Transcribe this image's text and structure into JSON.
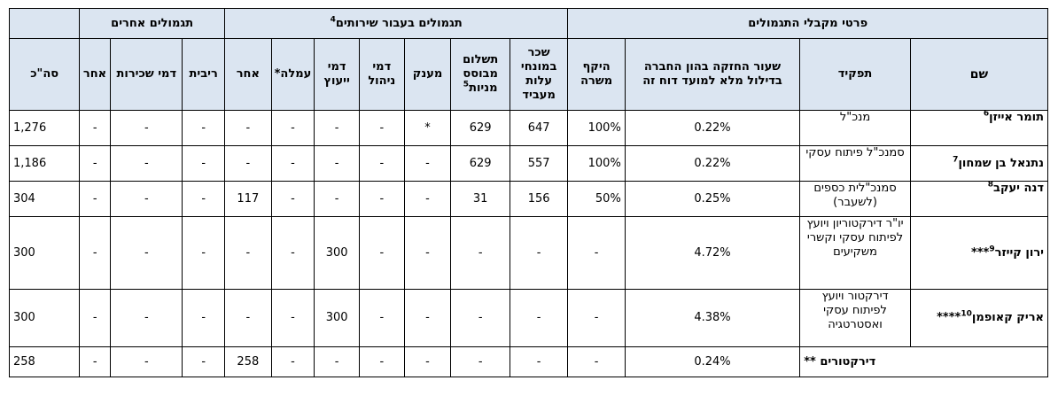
{
  "group_headers": {
    "recipients": "פרטי מקבלי התגמולים",
    "services": "תגמולים בעבור שירותים",
    "services_note": "4",
    "other": "תגמולים אחרים"
  },
  "columns": {
    "name": "שם",
    "role": "תפקיד",
    "holding": "שעור החזקה בהון החברה בדילול מלא למועד דוח זה",
    "scope": "היקף משרה",
    "salary": "שכר במונחי עלות מעביד",
    "share_payment": "תשלום מבוסס מניות",
    "share_payment_note": "5",
    "grant": "מענק",
    "management": "דמי ניהול",
    "consulting": "דמי ייעוץ",
    "commission": "עמלה*",
    "other_service": "אחר",
    "interest": "ריבית",
    "rent": "דמי שכירות",
    "other": "אחר",
    "total": "סה\"כ"
  },
  "rows": [
    {
      "name": "תומר אייזן",
      "note": "6",
      "role": "מנכ\"ל",
      "holding": "0.22%",
      "scope": "100%",
      "salary": "647",
      "share_payment": "629",
      "grant": "*",
      "management": "-",
      "consulting": "-",
      "commission": "-",
      "other_service": "-",
      "interest": "-",
      "rent": "-",
      "other": "-",
      "total": "1,276"
    },
    {
      "name": "נתנאל בן שמחון",
      "note": "7",
      "role": "סמנכ\"ל פיתוח עסקי",
      "holding": "0.22%",
      "scope": "100%",
      "salary": "557",
      "share_payment": "629",
      "grant": "-",
      "management": "-",
      "consulting": "-",
      "commission": "-",
      "other_service": "-",
      "interest": "-",
      "rent": "-",
      "other": "-",
      "total": "1,186"
    },
    {
      "name": "דנה יעקב",
      "note": "8",
      "role": "סמנכ\"לית כספים (לשעבר)",
      "holding": "0.25%",
      "scope": "50%",
      "salary": "156",
      "share_payment": "31",
      "grant": "-",
      "management": "-",
      "consulting": "-",
      "commission": "-",
      "other_service": "117",
      "interest": "-",
      "rent": "-",
      "other": "-",
      "total": "304"
    },
    {
      "name": "ירון קייזר",
      "note": "9",
      "suffix": "***",
      "role": "יו\"ר דירקטוריון ויועץ לפיתוח עסקי וקשרי משקיעים",
      "holding": "4.72%",
      "scope": "-",
      "salary": "-",
      "share_payment": "-",
      "grant": "-",
      "management": "-",
      "consulting": "300",
      "commission": "-",
      "other_service": "-",
      "interest": "-",
      "rent": "-",
      "other": "-",
      "total": "300"
    },
    {
      "name": "אריק קאופמן",
      "note": "10",
      "suffix": "****",
      "role": "דירקטור ויועץ לפיתוח עסקי ואסטרטגיה",
      "holding": "4.38%",
      "scope": "-",
      "salary": "-",
      "share_payment": "-",
      "grant": "-",
      "management": "-",
      "consulting": "300",
      "commission": "-",
      "other_service": "-",
      "interest": "-",
      "rent": "-",
      "other": "-",
      "total": "300"
    },
    {
      "name": "דירקטורים **",
      "holding": "0.24%",
      "scope": "-",
      "salary": "-",
      "share_payment": "-",
      "grant": "-",
      "management": "-",
      "consulting": "-",
      "commission": "-",
      "other_service": "258",
      "interest": "-",
      "rent": "-",
      "other": "-",
      "total": "258"
    }
  ]
}
